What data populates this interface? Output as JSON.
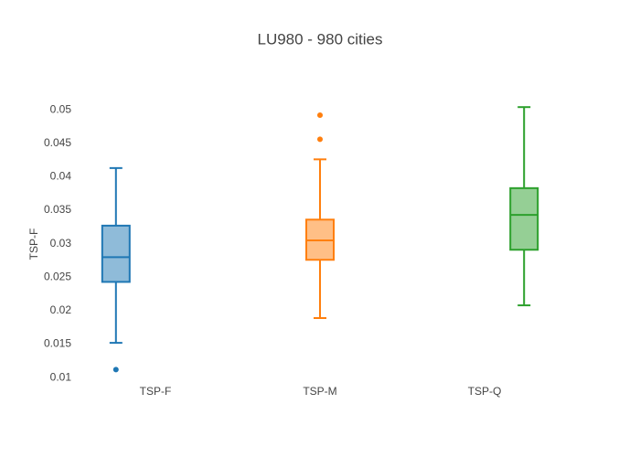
{
  "chart_data": {
    "type": "box",
    "title": "LU980 - 980 cities",
    "y_label": "TSP-F",
    "categories": [
      "TSP-F",
      "TSP-M",
      "TSP-Q"
    ],
    "series": [
      {
        "color": "#1f77b4",
        "min": 0.0152,
        "q1": 0.0243,
        "median": 0.028,
        "q3": 0.0327,
        "max": 0.0413,
        "outliers": [
          0.0112
        ]
      },
      {
        "color": "#ff7f0e",
        "min": 0.0189,
        "q1": 0.0276,
        "median": 0.0305,
        "q3": 0.0336,
        "max": 0.0426,
        "outliers": [
          0.0492,
          0.0456
        ]
      },
      {
        "color": "#2ca02c",
        "min": 0.0208,
        "q1": 0.0291,
        "median": 0.0343,
        "q3": 0.0383,
        "max": 0.0504,
        "outliers": []
      }
    ],
    "ylim": [
      0.0088,
      0.0522
    ],
    "yticks": [
      0.01,
      0.015,
      0.02,
      0.025,
      0.03,
      0.035,
      0.04,
      0.045,
      0.05
    ],
    "grid": false
  }
}
